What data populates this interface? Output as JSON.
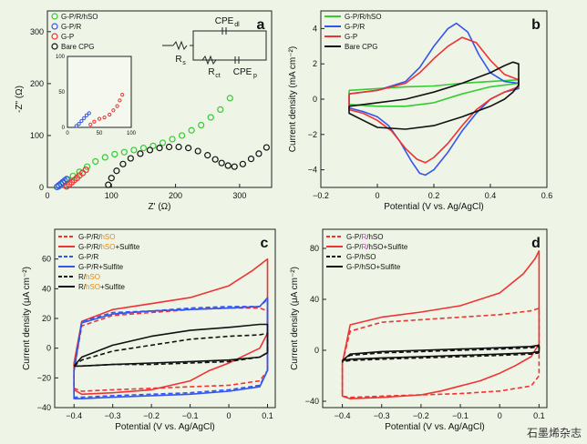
{
  "watermark": "石墨烯杂志",
  "colors": {
    "bg": "#eef4e6",
    "green": "#33cc33",
    "blue": "#3355ee",
    "red": "#ee3333",
    "black": "#111111",
    "orange": "#e08a1a",
    "purple": "#cc33cc"
  },
  "chart_data": [
    {
      "panel": "a",
      "type": "scatter",
      "xlabel": "Z' (Ω)",
      "ylabel": "-Z\" (Ω)",
      "xlim": [
        0,
        350
      ],
      "ylim": [
        0,
        340
      ],
      "xticks": [
        0,
        100,
        200,
        300
      ],
      "yticks": [
        0,
        100,
        200,
        300
      ],
      "circuit_labels": [
        "CPE",
        "dl",
        "R",
        "s",
        "R",
        "ct",
        "CPE",
        "p"
      ],
      "series": [
        {
          "name": "G-P/R/hSO",
          "color": "green",
          "marker": "circle",
          "x": [
            18,
            25,
            32,
            40,
            50,
            62,
            75,
            90,
            105,
            120,
            135,
            150,
            165,
            180,
            195,
            210,
            225,
            240,
            255,
            270,
            285
          ],
          "y": [
            2,
            8,
            15,
            22,
            30,
            40,
            50,
            58,
            64,
            68,
            72,
            76,
            80,
            86,
            93,
            100,
            110,
            120,
            135,
            150,
            172
          ]
        },
        {
          "name": "G-P/R",
          "color": "blue",
          "marker": "circle",
          "x": [
            15,
            18,
            21,
            24,
            27,
            30
          ],
          "y": [
            1,
            4,
            7,
            10,
            13,
            16
          ]
        },
        {
          "name": "G-P",
          "color": "red",
          "marker": "circle",
          "x": [
            30,
            34,
            38,
            42,
            46,
            50,
            55,
            60
          ],
          "y": [
            2,
            6,
            10,
            14,
            18,
            23,
            28,
            34
          ]
        },
        {
          "name": "Bare CPG",
          "color": "black",
          "marker": "circle",
          "x": [
            95,
            100,
            108,
            118,
            130,
            145,
            160,
            175,
            190,
            205,
            220,
            235,
            250,
            262,
            272,
            282,
            292,
            305,
            318,
            330,
            342
          ],
          "y": [
            5,
            18,
            32,
            45,
            56,
            65,
            72,
            76,
            78,
            78,
            76,
            70,
            62,
            54,
            47,
            42,
            40,
            45,
            55,
            65,
            77
          ]
        }
      ],
      "inset": {
        "xlim": [
          0,
          100
        ],
        "ylim": [
          0,
          100
        ],
        "xticks": [
          0,
          50,
          100
        ],
        "yticks": [
          0,
          50,
          100
        ],
        "series": [
          {
            "name": "G-P/R",
            "color": "blue",
            "x": [
              14,
              18,
              22,
              26,
              30,
              34
            ],
            "y": [
              2,
              5,
              9,
              13,
              17,
              20
            ]
          },
          {
            "name": "G-P",
            "color": "red",
            "x": [
              36,
              42,
              50,
              58,
              66,
              72,
              78,
              82,
              86
            ],
            "y": [
              4,
              8,
              12,
              14,
              18,
              24,
              30,
              38,
              46
            ]
          }
        ]
      }
    },
    {
      "panel": "b",
      "type": "line",
      "xlabel": "Potential (V vs. Ag/AgCl)",
      "ylabel": "Current density (mA cm⁻²)",
      "xlim": [
        -0.2,
        0.6
      ],
      "ylim": [
        -5,
        5
      ],
      "xticks": [
        -0.2,
        0.0,
        0.2,
        0.4,
        0.6
      ],
      "yticks": [
        -4,
        -2,
        0,
        2,
        4
      ],
      "series": [
        {
          "name": "G-P/R/hSO",
          "color": "green",
          "x": [
            -0.1,
            0.0,
            0.1,
            0.2,
            0.3,
            0.4,
            0.5,
            0.5,
            0.4,
            0.3,
            0.2,
            0.1,
            0.0,
            -0.1,
            -0.1
          ],
          "y": [
            0.5,
            0.6,
            0.7,
            0.75,
            0.9,
            1.0,
            1.1,
            0.9,
            0.7,
            0.3,
            -0.2,
            -0.4,
            -0.4,
            -0.3,
            0.5
          ]
        },
        {
          "name": "G-P/R",
          "color": "blue",
          "x": [
            -0.1,
            0.0,
            0.1,
            0.15,
            0.2,
            0.25,
            0.28,
            0.32,
            0.36,
            0.4,
            0.45,
            0.5,
            0.5,
            0.45,
            0.4,
            0.35,
            0.3,
            0.25,
            0.2,
            0.17,
            0.15,
            0.12,
            0.08,
            0.04,
            0.0,
            -0.05,
            -0.1,
            -0.1
          ],
          "y": [
            0.3,
            0.5,
            1.0,
            1.8,
            3.0,
            4.0,
            4.3,
            3.8,
            2.5,
            1.5,
            1.0,
            0.9,
            0.6,
            0.4,
            0.0,
            -0.8,
            -1.8,
            -3.0,
            -4.0,
            -4.3,
            -4.2,
            -3.5,
            -2.4,
            -1.5,
            -1.0,
            -0.7,
            -0.5,
            0.3
          ]
        },
        {
          "name": "G-P",
          "color": "red",
          "x": [
            -0.1,
            0.0,
            0.1,
            0.15,
            0.2,
            0.25,
            0.3,
            0.35,
            0.4,
            0.45,
            0.5,
            0.5,
            0.45,
            0.4,
            0.35,
            0.3,
            0.25,
            0.2,
            0.17,
            0.14,
            0.1,
            0.05,
            0.0,
            -0.05,
            -0.1,
            -0.1
          ],
          "y": [
            0.3,
            0.5,
            0.9,
            1.5,
            2.3,
            3.0,
            3.5,
            3.2,
            2.2,
            1.4,
            1.1,
            0.7,
            0.4,
            0.0,
            -0.6,
            -1.5,
            -2.5,
            -3.3,
            -3.6,
            -3.4,
            -2.8,
            -1.8,
            -1.2,
            -0.8,
            -0.6,
            0.3
          ]
        },
        {
          "name": "Bare CPG",
          "color": "black",
          "x": [
            -0.1,
            0.0,
            0.1,
            0.2,
            0.3,
            0.4,
            0.45,
            0.48,
            0.5,
            0.5,
            0.48,
            0.45,
            0.4,
            0.3,
            0.2,
            0.1,
            0.0,
            -0.05,
            -0.1,
            -0.1
          ],
          "y": [
            -0.4,
            -0.2,
            0.0,
            0.4,
            0.9,
            1.5,
            1.9,
            2.1,
            2.0,
            0.8,
            0.4,
            0.0,
            -0.4,
            -1.0,
            -1.5,
            -1.7,
            -1.6,
            -1.2,
            -0.8,
            -0.4
          ]
        }
      ]
    },
    {
      "panel": "c",
      "type": "line",
      "xlabel": "Potential (V vs. Ag/AgCl)",
      "ylabel": "Current density (μA cm⁻²)",
      "xlim": [
        -0.45,
        0.12
      ],
      "ylim": [
        -40,
        80
      ],
      "xticks": [
        -0.4,
        -0.3,
        -0.2,
        -0.1,
        0.0,
        0.1
      ],
      "yticks": [
        -40,
        -20,
        0,
        20,
        40,
        60
      ],
      "series": [
        {
          "name": "G-P/R/hSO",
          "color": "red",
          "dash": true,
          "x": [
            -0.4,
            -0.38,
            -0.3,
            -0.2,
            -0.1,
            0.0,
            0.08,
            0.1,
            0.1,
            0.08,
            0.0,
            -0.1,
            -0.2,
            -0.3,
            -0.38,
            -0.4,
            -0.4
          ],
          "y": [
            -15,
            15,
            22,
            24,
            26,
            27,
            27,
            25,
            -15,
            -22,
            -25,
            -26,
            -27,
            -28,
            -29,
            -27,
            -15
          ]
        },
        {
          "name": "G-P/R/hSO+Sulfite",
          "color": "red",
          "dash": false,
          "x": [
            -0.4,
            -0.38,
            -0.3,
            -0.2,
            -0.1,
            0.0,
            0.06,
            0.09,
            0.1,
            0.1,
            0.08,
            0.04,
            0.0,
            -0.05,
            -0.1,
            -0.15,
            -0.2,
            -0.3,
            -0.38,
            -0.4,
            -0.4
          ],
          "y": [
            -10,
            18,
            26,
            30,
            34,
            42,
            52,
            58,
            60,
            10,
            0,
            -5,
            -10,
            -15,
            -22,
            -25,
            -28,
            -30,
            -31,
            -28,
            -10
          ]
        },
        {
          "name": "G-P/R",
          "color": "blue",
          "dash": true,
          "x": [
            -0.4,
            -0.38,
            -0.3,
            -0.2,
            -0.1,
            0.0,
            0.08,
            0.1,
            0.1,
            0.08,
            0.0,
            -0.1,
            -0.2,
            -0.3,
            -0.38,
            -0.4,
            -0.4
          ],
          "y": [
            -15,
            18,
            24,
            25,
            27,
            28,
            28,
            33,
            -15,
            -25,
            -28,
            -30,
            -31,
            -32,
            -33,
            -33,
            -15
          ]
        },
        {
          "name": "G-P/R+Sulfite",
          "color": "blue",
          "dash": false,
          "x": [
            -0.4,
            -0.38,
            -0.3,
            -0.2,
            -0.1,
            0.0,
            0.08,
            0.1,
            0.1,
            0.08,
            0.0,
            -0.1,
            -0.2,
            -0.3,
            -0.38,
            -0.4,
            -0.4
          ],
          "y": [
            -15,
            17,
            23,
            25,
            26,
            27,
            28,
            34,
            -15,
            -26,
            -29,
            -31,
            -32,
            -33,
            -34,
            -34,
            -15
          ]
        },
        {
          "name": "R/hSO",
          "color": "black",
          "dash": true,
          "x": [
            -0.4,
            -0.38,
            -0.3,
            -0.2,
            -0.1,
            0.0,
            0.08,
            0.1,
            0.1,
            0.08,
            0.0,
            -0.1,
            -0.2,
            -0.3,
            -0.38,
            -0.4,
            -0.4
          ],
          "y": [
            -12,
            -8,
            -2,
            2,
            6,
            8,
            9,
            10,
            -3,
            -6,
            -9,
            -10,
            -11,
            -11,
            -12,
            -12,
            -12
          ]
        },
        {
          "name": "R/hSO+Sulfite",
          "color": "black",
          "dash": false,
          "x": [
            -0.4,
            -0.38,
            -0.3,
            -0.2,
            -0.1,
            0.0,
            0.08,
            0.1,
            0.1,
            0.08,
            0.0,
            -0.1,
            -0.2,
            -0.3,
            -0.38,
            -0.4,
            -0.4
          ],
          "y": [
            -12,
            -6,
            2,
            8,
            12,
            14,
            16,
            16,
            -3,
            -6,
            -8,
            -9,
            -10,
            -11,
            -12,
            -12,
            -12
          ]
        }
      ],
      "legend": [
        {
          "parts": [
            {
              "text": "G-P/R/",
              "color": "black"
            },
            {
              "text": "hSO",
              "color": "orange"
            }
          ]
        },
        {
          "parts": [
            {
              "text": "G-P/R/",
              "color": "black"
            },
            {
              "text": "hSO",
              "color": "orange"
            },
            {
              "text": "+Sulfite",
              "color": "black"
            }
          ]
        },
        {
          "parts": [
            {
              "text": "G-P/R",
              "color": "black"
            }
          ]
        },
        {
          "parts": [
            {
              "text": "G-P/R+Sulfite",
              "color": "black"
            }
          ]
        },
        {
          "parts": [
            {
              "text": "R/",
              "color": "black"
            },
            {
              "text": "hSO",
              "color": "orange"
            }
          ]
        },
        {
          "parts": [
            {
              "text": "R/",
              "color": "black"
            },
            {
              "text": "hSO",
              "color": "orange"
            },
            {
              "text": "+Sulfite",
              "color": "black"
            }
          ]
        }
      ]
    },
    {
      "panel": "d",
      "type": "line",
      "xlabel": "Potential (V vs. Ag/AgCl)",
      "ylabel": "Current density (μA cm⁻²)",
      "xlim": [
        -0.45,
        0.12
      ],
      "ylim": [
        -45,
        95
      ],
      "xticks": [
        -0.4,
        -0.3,
        -0.2,
        -0.1,
        0.0,
        0.1
      ],
      "yticks": [
        -40,
        0,
        40,
        80
      ],
      "series": [
        {
          "name": "G-P/R/hSO",
          "color": "red",
          "dash": true,
          "x": [
            -0.4,
            -0.38,
            -0.3,
            -0.2,
            -0.1,
            0.0,
            0.08,
            0.1,
            0.1,
            0.08,
            0.0,
            -0.1,
            -0.2,
            -0.3,
            -0.38,
            -0.4,
            -0.4
          ],
          "y": [
            -10,
            15,
            22,
            24,
            26,
            28,
            31,
            33,
            -20,
            -28,
            -32,
            -34,
            -35,
            -36,
            -37,
            -36,
            -10
          ]
        },
        {
          "name": "G-P/R/hSO+Sulfite",
          "color": "red",
          "dash": false,
          "x": [
            -0.4,
            -0.38,
            -0.3,
            -0.2,
            -0.1,
            0.0,
            0.06,
            0.09,
            0.1,
            0.1,
            0.08,
            0.04,
            0.0,
            -0.05,
            -0.1,
            -0.15,
            -0.2,
            -0.3,
            -0.38,
            -0.4,
            -0.4
          ],
          "y": [
            -10,
            20,
            26,
            30,
            35,
            45,
            60,
            72,
            78,
            5,
            -5,
            -12,
            -18,
            -24,
            -28,
            -32,
            -35,
            -37,
            -38,
            -36,
            -10
          ]
        },
        {
          "name": "G-P/hSO",
          "color": "black",
          "dash": true,
          "x": [
            -0.4,
            -0.38,
            -0.3,
            -0.2,
            -0.1,
            0.0,
            0.08,
            0.1,
            0.1,
            0.08,
            0.0,
            -0.1,
            -0.2,
            -0.3,
            -0.38,
            -0.4,
            -0.4
          ],
          "y": [
            -8,
            -4,
            -2,
            -1,
            0,
            1,
            2,
            3,
            -2,
            -3,
            -4,
            -5,
            -6,
            -7,
            -8,
            -9,
            -8
          ]
        },
        {
          "name": "G-P/hSO+Sulfite",
          "color": "black",
          "dash": false,
          "x": [
            -0.4,
            -0.38,
            -0.3,
            -0.2,
            -0.1,
            0.0,
            0.08,
            0.1,
            0.1,
            0.08,
            0.0,
            -0.1,
            -0.2,
            -0.3,
            -0.38,
            -0.4,
            -0.4
          ],
          "y": [
            -8,
            -3,
            -1,
            0,
            1,
            2,
            3,
            4,
            -1,
            -2,
            -3,
            -4,
            -5,
            -6,
            -7,
            -8,
            -8
          ]
        }
      ],
      "legend": [
        {
          "parts": [
            {
              "text": "G-P/",
              "color": "black"
            },
            {
              "text": "R",
              "color": "purple"
            },
            {
              "text": "/hSO",
              "color": "black"
            }
          ]
        },
        {
          "parts": [
            {
              "text": "G-P/",
              "color": "black"
            },
            {
              "text": "R",
              "color": "purple"
            },
            {
              "text": "/hSO+Sulfite",
              "color": "black"
            }
          ]
        },
        {
          "parts": [
            {
              "text": "G-P/hSO",
              "color": "black"
            }
          ]
        },
        {
          "parts": [
            {
              "text": "G-P/hSO+Sulfite",
              "color": "black"
            }
          ]
        }
      ]
    }
  ]
}
